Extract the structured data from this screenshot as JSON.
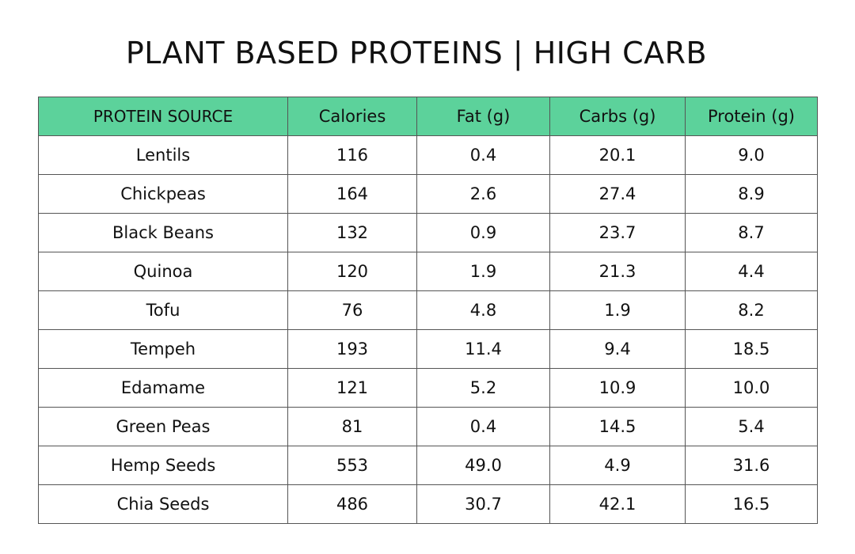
{
  "title": "PLANT BASED PROTEINS | HIGH CARB",
  "colors": {
    "header_bg": "#5cd29b",
    "border": "#555555",
    "text": "#111111"
  },
  "table": {
    "headers": [
      "PROTEIN SOURCE",
      "Calories",
      "Fat (g)",
      "Carbs (g)",
      "Protein (g)"
    ],
    "rows": [
      [
        "Lentils",
        "116",
        "0.4",
        "20.1",
        "9.0"
      ],
      [
        "Chickpeas",
        "164",
        "2.6",
        "27.4",
        "8.9"
      ],
      [
        "Black Beans",
        "132",
        "0.9",
        "23.7",
        "8.7"
      ],
      [
        "Quinoa",
        "120",
        "1.9",
        "21.3",
        "4.4"
      ],
      [
        "Tofu",
        "76",
        "4.8",
        "1.9",
        "8.2"
      ],
      [
        "Tempeh",
        "193",
        "11.4",
        "9.4",
        "18.5"
      ],
      [
        "Edamame",
        "121",
        "5.2",
        "10.9",
        "10.0"
      ],
      [
        "Green Peas",
        "81",
        "0.4",
        "14.5",
        "5.4"
      ],
      [
        "Hemp Seeds",
        "553",
        "49.0",
        "4.9",
        "31.6"
      ],
      [
        "Chia Seeds",
        "486",
        "30.7",
        "42.1",
        "16.5"
      ]
    ]
  }
}
